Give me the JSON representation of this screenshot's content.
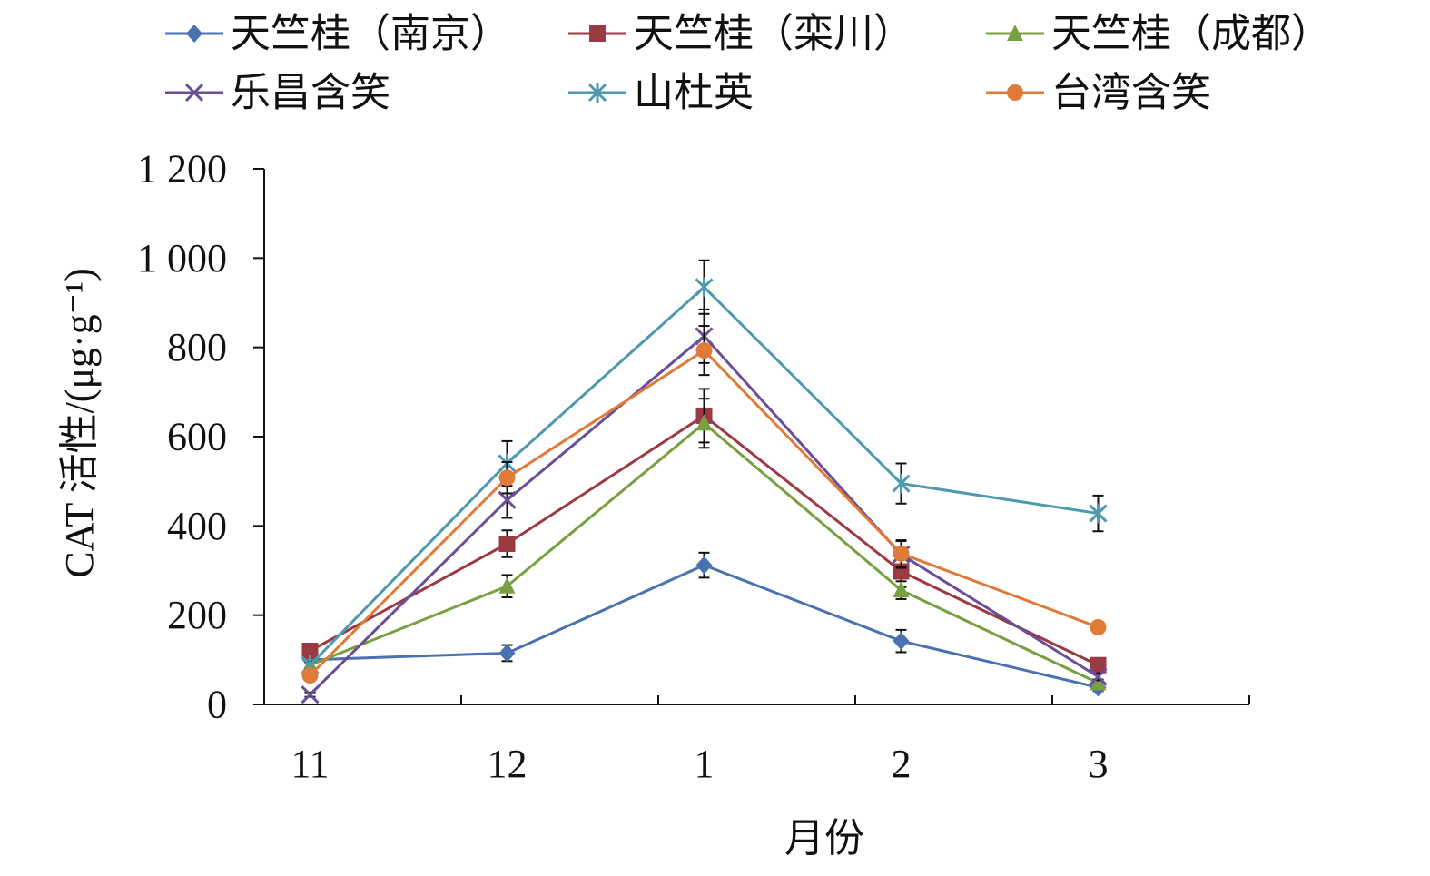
{
  "chart_data": {
    "type": "line",
    "xlabel": "月份",
    "ylabel": "CAT 活性/(μg·g⁻¹)",
    "ylim": [
      0,
      1200
    ],
    "yticks": [
      0,
      200,
      400,
      600,
      800,
      1000,
      1200
    ],
    "ytick_labels": [
      "0",
      "200",
      "400",
      "600",
      "800",
      "1 000",
      "1 200"
    ],
    "categories": [
      "11",
      "12",
      "1",
      "2",
      "3"
    ],
    "legend_position": "top",
    "series": [
      {
        "name": "天竺桂（南京）",
        "color": "#4a72b0",
        "marker": "diamond",
        "values": [
          100,
          115,
          312,
          142,
          38
        ],
        "errors": [
          8,
          18,
          28,
          25,
          8
        ]
      },
      {
        "name": "天竺桂（栾川）",
        "color": "#9c3a44",
        "marker": "square",
        "values": [
          120,
          360,
          647,
          298,
          88
        ],
        "errors": [
          10,
          30,
          60,
          35,
          10
        ]
      },
      {
        "name": "天竺桂（成都）",
        "color": "#78a040",
        "marker": "triangle",
        "values": [
          88,
          265,
          630,
          256,
          48
        ],
        "errors": [
          8,
          25,
          55,
          20,
          8
        ]
      },
      {
        "name": "乐昌含笑",
        "color": "#6a4e96",
        "marker": "x",
        "values": [
          22,
          458,
          825,
          336,
          62
        ],
        "errors": [
          5,
          40,
          60,
          30,
          8
        ]
      },
      {
        "name": "山杜英",
        "color": "#4e98b0",
        "marker": "star",
        "values": [
          88,
          540,
          935,
          495,
          428
        ],
        "errors": [
          8,
          50,
          60,
          45,
          40
        ]
      },
      {
        "name": "台湾含笑",
        "color": "#e07a38",
        "marker": "circle",
        "values": [
          65,
          508,
          793,
          338,
          173
        ],
        "errors": [
          8,
          35,
          55,
          30,
          12
        ]
      }
    ]
  }
}
